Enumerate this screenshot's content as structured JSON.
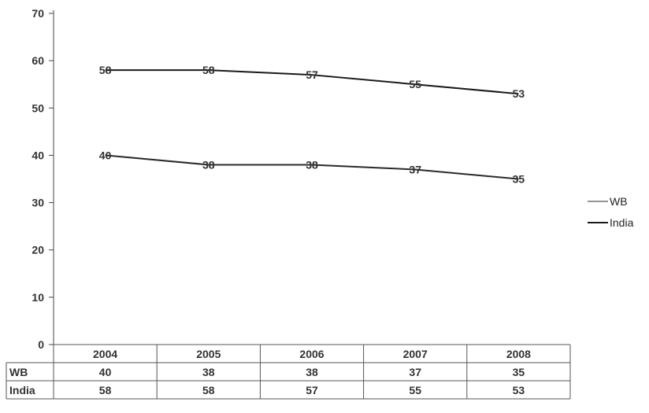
{
  "chart_data": {
    "type": "line",
    "categories": [
      "2004",
      "2005",
      "2006",
      "2007",
      "2008"
    ],
    "series": [
      {
        "name": "WB",
        "values": [
          40,
          38,
          38,
          37,
          35
        ],
        "color": "#2a2a2a"
      },
      {
        "name": "India",
        "values": [
          58,
          58,
          57,
          55,
          53
        ],
        "color": "#1a1a1a"
      }
    ],
    "title": "",
    "xlabel": "",
    "ylabel": "",
    "ylim": [
      0,
      70
    ],
    "yticks": [
      0,
      10,
      20,
      30,
      40,
      50,
      60,
      70
    ],
    "grid": false,
    "legend": "right",
    "data_table": true
  }
}
